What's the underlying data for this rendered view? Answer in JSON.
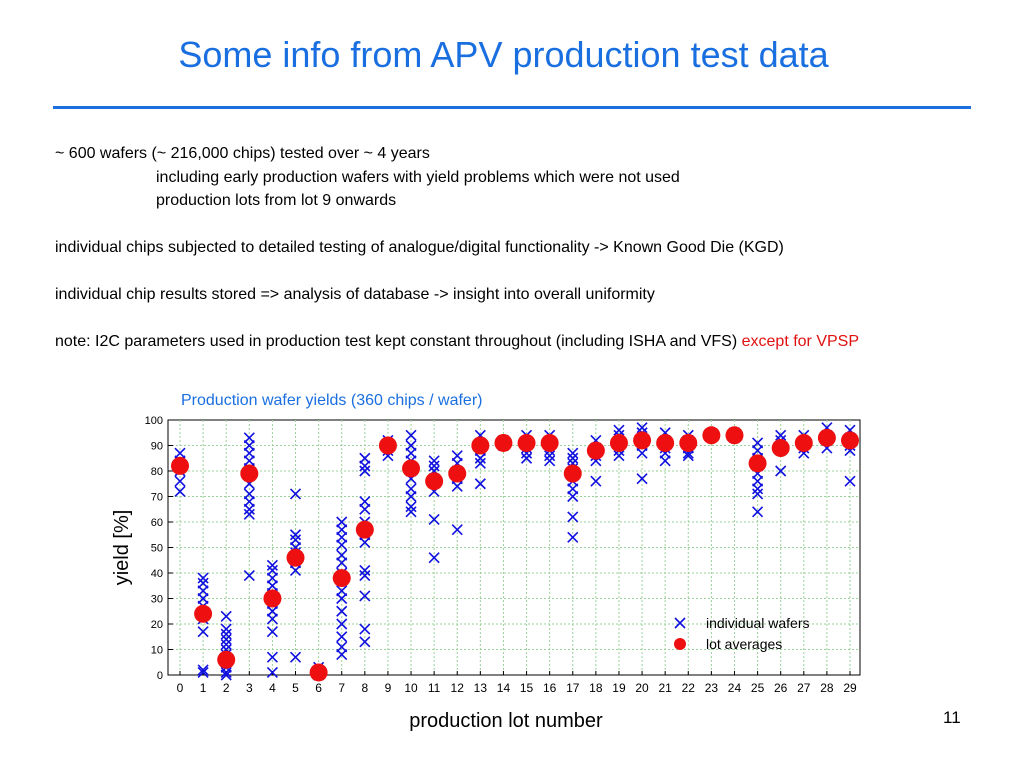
{
  "slide": {
    "title": "Some info from APV production test data",
    "lines": [
      "~ 600 wafers (~ 216,000 chips) tested over ~ 4 years",
      "including early production wafers with yield problems which were not used",
      "production lots from lot 9 onwards",
      "individual chips subjected to detailed testing of analogue/digital functionality -> Known Good Die (KGD)",
      "individual chip results stored => analysis of database -> insight into overall uniformity"
    ],
    "note_main": "note: I2C parameters used in production test kept constant throughout (including ISHA and VFS) ",
    "note_highlight": "except for VPSP",
    "page_number": "11"
  },
  "chart_data": {
    "type": "scatter",
    "title": "Production wafer yields (360 chips / wafer)",
    "xlabel": "production lot number",
    "ylabel": "yield [%]",
    "xlim": [
      0,
      29
    ],
    "ylim": [
      0,
      100
    ],
    "x_ticks": [
      0,
      1,
      2,
      3,
      4,
      5,
      6,
      7,
      8,
      9,
      10,
      11,
      12,
      13,
      14,
      15,
      16,
      17,
      18,
      19,
      20,
      21,
      22,
      23,
      24,
      25,
      26,
      27,
      28,
      29
    ],
    "y_ticks": [
      0,
      10,
      20,
      30,
      40,
      50,
      60,
      70,
      80,
      90,
      100
    ],
    "grid": true,
    "legend": "bottom-right",
    "colors": {
      "wafers": "#1010e0",
      "averages": "#ee1010",
      "grid": "#9ad09a"
    },
    "series": [
      {
        "name": "individual wafers",
        "marker": "x",
        "points": [
          [
            0,
            87
          ],
          [
            0,
            84
          ],
          [
            0,
            80
          ],
          [
            0,
            76
          ],
          [
            0,
            72
          ],
          [
            1,
            38
          ],
          [
            1,
            36
          ],
          [
            1,
            33
          ],
          [
            1,
            30
          ],
          [
            1,
            27
          ],
          [
            1,
            22
          ],
          [
            1,
            17
          ],
          [
            1,
            2
          ],
          [
            1,
            1
          ],
          [
            2,
            23
          ],
          [
            2,
            18
          ],
          [
            2,
            16
          ],
          [
            2,
            14
          ],
          [
            2,
            12
          ],
          [
            2,
            10
          ],
          [
            2,
            8
          ],
          [
            2,
            5
          ],
          [
            2,
            3
          ],
          [
            2,
            1
          ],
          [
            2,
            0
          ],
          [
            3,
            93
          ],
          [
            3,
            90
          ],
          [
            3,
            87
          ],
          [
            3,
            84
          ],
          [
            3,
            81
          ],
          [
            3,
            78
          ],
          [
            3,
            75
          ],
          [
            3,
            71
          ],
          [
            3,
            68
          ],
          [
            3,
            65
          ],
          [
            3,
            63
          ],
          [
            3,
            39
          ],
          [
            4,
            43
          ],
          [
            4,
            41
          ],
          [
            4,
            38
          ],
          [
            4,
            35
          ],
          [
            4,
            32
          ],
          [
            4,
            28
          ],
          [
            4,
            25
          ],
          [
            4,
            22
          ],
          [
            4,
            17
          ],
          [
            4,
            7
          ],
          [
            4,
            1
          ],
          [
            5,
            71
          ],
          [
            5,
            55
          ],
          [
            5,
            53
          ],
          [
            5,
            50
          ],
          [
            5,
            48
          ],
          [
            5,
            46
          ],
          [
            5,
            44
          ],
          [
            5,
            41
          ],
          [
            5,
            7
          ],
          [
            6,
            3
          ],
          [
            6,
            1
          ],
          [
            6,
            0
          ],
          [
            7,
            60
          ],
          [
            7,
            57
          ],
          [
            7,
            54
          ],
          [
            7,
            51
          ],
          [
            7,
            47
          ],
          [
            7,
            44
          ],
          [
            7,
            40
          ],
          [
            7,
            37
          ],
          [
            7,
            33
          ],
          [
            7,
            30
          ],
          [
            7,
            25
          ],
          [
            7,
            20
          ],
          [
            7,
            15
          ],
          [
            7,
            11
          ],
          [
            7,
            8
          ],
          [
            8,
            85
          ],
          [
            8,
            82
          ],
          [
            8,
            80
          ],
          [
            8,
            68
          ],
          [
            8,
            65
          ],
          [
            8,
            60
          ],
          [
            8,
            55
          ],
          [
            8,
            52
          ],
          [
            8,
            41
          ],
          [
            8,
            39
          ],
          [
            8,
            31
          ],
          [
            8,
            18
          ],
          [
            8,
            13
          ],
          [
            9,
            92
          ],
          [
            9,
            90
          ],
          [
            9,
            88
          ],
          [
            9,
            86
          ],
          [
            10,
            94
          ],
          [
            10,
            90
          ],
          [
            10,
            87
          ],
          [
            10,
            84
          ],
          [
            10,
            80
          ],
          [
            10,
            77
          ],
          [
            10,
            73
          ],
          [
            10,
            70
          ],
          [
            10,
            66
          ],
          [
            10,
            64
          ],
          [
            11,
            84
          ],
          [
            11,
            82
          ],
          [
            11,
            80
          ],
          [
            11,
            77
          ],
          [
            11,
            72
          ],
          [
            11,
            61
          ],
          [
            11,
            46
          ],
          [
            12,
            86
          ],
          [
            12,
            83
          ],
          [
            12,
            80
          ],
          [
            12,
            77
          ],
          [
            12,
            74
          ],
          [
            12,
            57
          ],
          [
            13,
            94
          ],
          [
            13,
            91
          ],
          [
            13,
            88
          ],
          [
            13,
            85
          ],
          [
            13,
            83
          ],
          [
            13,
            75
          ],
          [
            14,
            92
          ],
          [
            14,
            90
          ],
          [
            15,
            94
          ],
          [
            15,
            91
          ],
          [
            15,
            89
          ],
          [
            15,
            87
          ],
          [
            15,
            85
          ],
          [
            16,
            94
          ],
          [
            16,
            91
          ],
          [
            16,
            88
          ],
          [
            16,
            86
          ],
          [
            16,
            84
          ],
          [
            17,
            87
          ],
          [
            17,
            85
          ],
          [
            17,
            83
          ],
          [
            17,
            81
          ],
          [
            17,
            78
          ],
          [
            17,
            76
          ],
          [
            17,
            73
          ],
          [
            17,
            70
          ],
          [
            17,
            62
          ],
          [
            17,
            54
          ],
          [
            18,
            92
          ],
          [
            18,
            89
          ],
          [
            18,
            86
          ],
          [
            18,
            84
          ],
          [
            18,
            76
          ],
          [
            19,
            96
          ],
          [
            19,
            94
          ],
          [
            19,
            91
          ],
          [
            19,
            88
          ],
          [
            19,
            86
          ],
          [
            20,
            97
          ],
          [
            20,
            95
          ],
          [
            20,
            92
          ],
          [
            20,
            90
          ],
          [
            20,
            87
          ],
          [
            20,
            77
          ],
          [
            21,
            95
          ],
          [
            21,
            92
          ],
          [
            21,
            89
          ],
          [
            21,
            87
          ],
          [
            21,
            84
          ],
          [
            22,
            94
          ],
          [
            22,
            92
          ],
          [
            22,
            89
          ],
          [
            22,
            87
          ],
          [
            22,
            86
          ],
          [
            23,
            94
          ],
          [
            24,
            95
          ],
          [
            24,
            93
          ],
          [
            25,
            91
          ],
          [
            25,
            88
          ],
          [
            25,
            85
          ],
          [
            25,
            82
          ],
          [
            25,
            79
          ],
          [
            25,
            76
          ],
          [
            25,
            73
          ],
          [
            25,
            71
          ],
          [
            25,
            64
          ],
          [
            26,
            94
          ],
          [
            26,
            92
          ],
          [
            26,
            80
          ],
          [
            27,
            94
          ],
          [
            27,
            91
          ],
          [
            27,
            89
          ],
          [
            27,
            87
          ],
          [
            28,
            97
          ],
          [
            28,
            94
          ],
          [
            28,
            92
          ],
          [
            28,
            89
          ],
          [
            29,
            96
          ],
          [
            29,
            93
          ],
          [
            29,
            90
          ],
          [
            29,
            88
          ],
          [
            29,
            76
          ]
        ]
      },
      {
        "name": "lot averages",
        "marker": "circle",
        "points": [
          [
            0,
            82
          ],
          [
            1,
            24
          ],
          [
            2,
            6
          ],
          [
            3,
            79
          ],
          [
            4,
            30
          ],
          [
            5,
            46
          ],
          [
            6,
            1
          ],
          [
            7,
            38
          ],
          [
            8,
            57
          ],
          [
            9,
            90
          ],
          [
            10,
            81
          ],
          [
            11,
            76
          ],
          [
            12,
            79
          ],
          [
            13,
            90
          ],
          [
            14,
            91
          ],
          [
            15,
            91
          ],
          [
            16,
            91
          ],
          [
            17,
            79
          ],
          [
            18,
            88
          ],
          [
            19,
            91
          ],
          [
            20,
            92
          ],
          [
            21,
            91
          ],
          [
            22,
            91
          ],
          [
            23,
            94
          ],
          [
            24,
            94
          ],
          [
            25,
            83
          ],
          [
            26,
            89
          ],
          [
            27,
            91
          ],
          [
            28,
            93
          ],
          [
            29,
            92
          ]
        ]
      }
    ]
  }
}
